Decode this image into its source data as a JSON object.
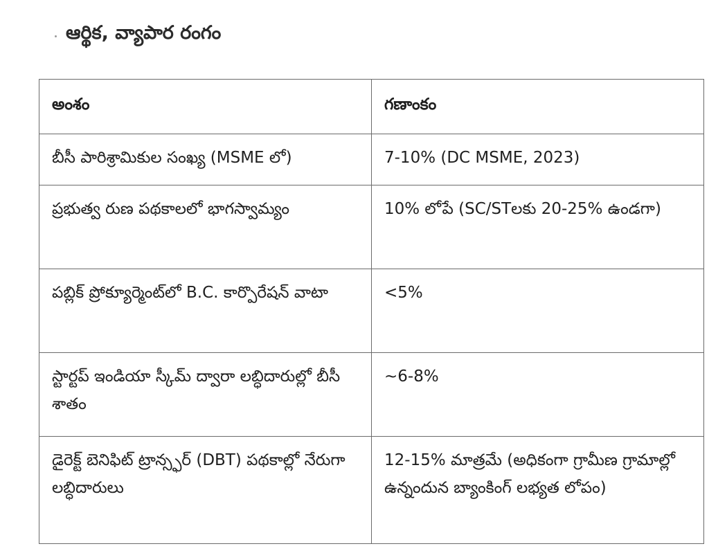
{
  "heading": "ఆర్థిక, వ్యాపార రంగం",
  "table": {
    "headers": [
      "అంశం",
      "గణాంకం"
    ],
    "rows": [
      [
        "బీసీ పారిశ్రామికుల సంఖ్య (MSME లో)",
        "7-10% (DC MSME, 2023)"
      ],
      [
        "ప్రభుత్వ రుణ పథకాలలో భాగస్వామ్యం",
        "10% లోపే (SC/STలకు 20-25% ఉండగా)"
      ],
      [
        "పబ్లిక్ ప్రోక్యూర్మెంట్‌లో B.C. కార్పొరేషన్ వాటా",
        "<5%"
      ],
      [
        "స్టార్టప్ ఇండియా స్కీమ్ ద్వారా లబ్ధిదారుల్లో బీసీ శాతం",
        "~6-8%"
      ],
      [
        "డైరెక్ట్ బెనిఫిట్ ట్రాన్స్ఫర్ (DBT) పథకాల్లో నేరుగా లబ్ధిదారులు",
        "12-15% మాత్రమే (అధికంగా గ్రామీణ గ్రామాల్లో ఉన్నందున బ్యాంకింగ్ లభ్యత లోపం)"
      ]
    ]
  }
}
